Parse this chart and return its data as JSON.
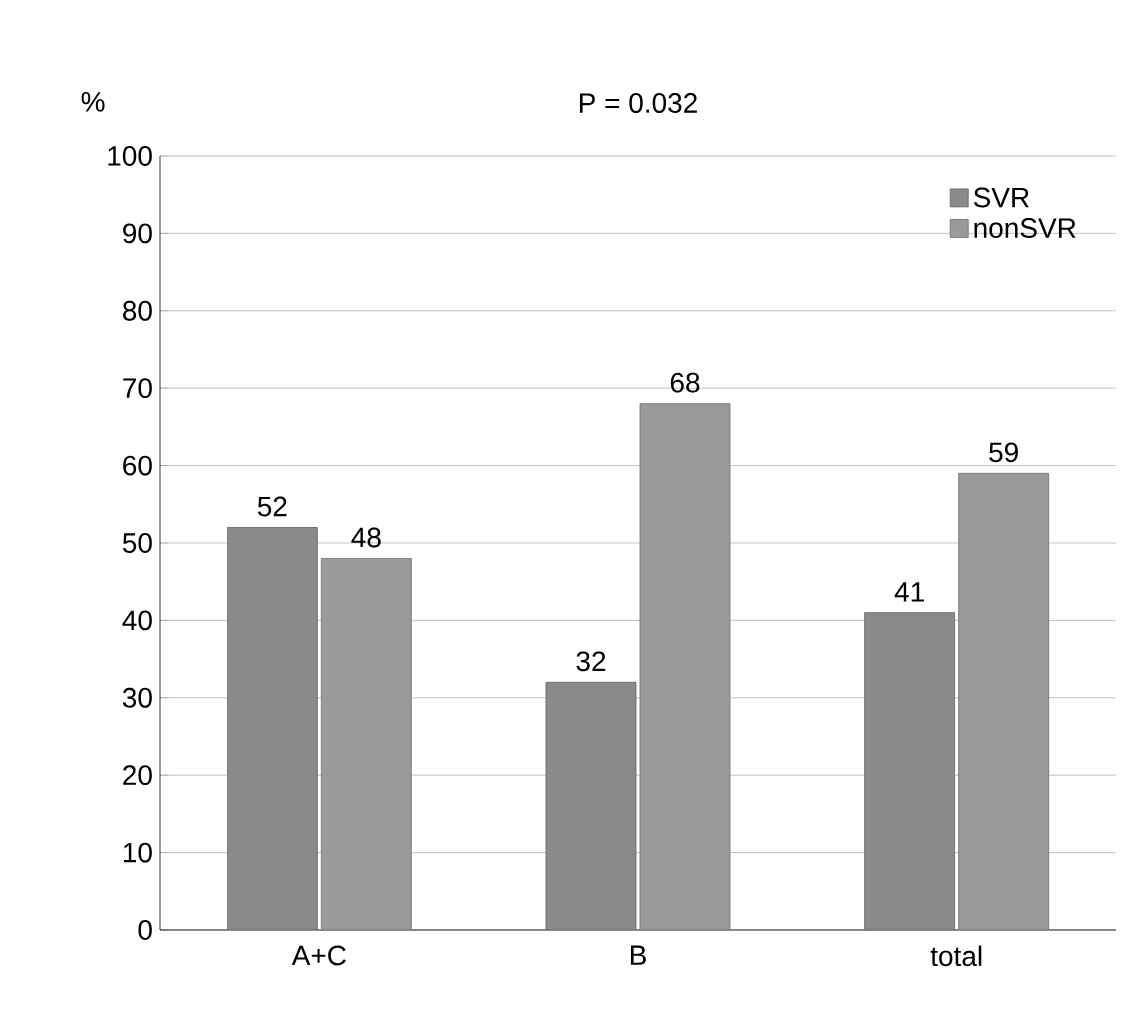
{
  "chart_data": {
    "type": "bar",
    "title": "P = 0.032",
    "ylabel": "%",
    "categories": [
      "A+C",
      "B",
      "total"
    ],
    "series": [
      {
        "name": "SVR",
        "color": "#8a8a8a",
        "values": [
          52,
          32,
          41
        ]
      },
      {
        "name": "nonSVR",
        "color": "#9a9a9a",
        "values": [
          48,
          68,
          59
        ]
      }
    ],
    "ylim": [
      0,
      100
    ],
    "yticks": [
      0,
      10,
      20,
      30,
      40,
      50,
      60,
      70,
      80,
      90,
      100
    ],
    "grid": "y",
    "legend": "top right",
    "data_labels": true
  }
}
